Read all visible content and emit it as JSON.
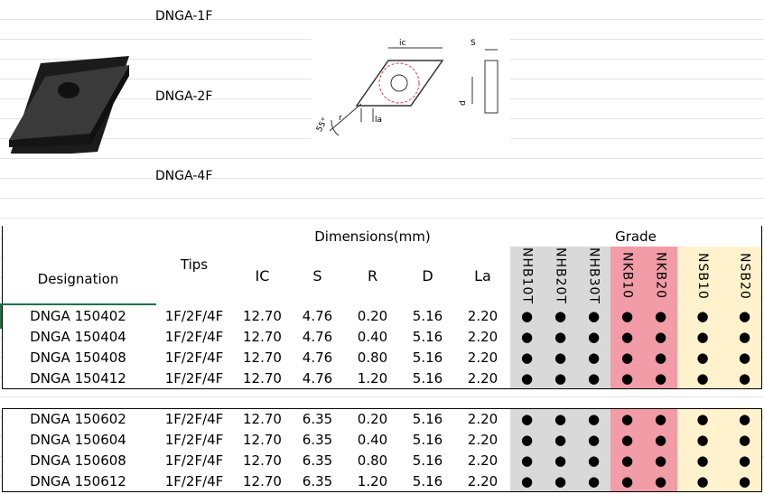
{
  "labels": [
    "DNGA-1F",
    "DNGA-2F",
    "DNGA-4F"
  ],
  "drawing": {
    "ic": "ic",
    "s": "S",
    "angle": "55°",
    "r": "r",
    "la": "la",
    "d": "d"
  },
  "table": {
    "headers": {
      "designation": "Designation",
      "tips": "Tips",
      "dimensions": "Dimensions(mm)",
      "grade": "Grade",
      "dims": [
        "IC",
        "S",
        "R",
        "D",
        "La"
      ],
      "grades": [
        "NHB10T",
        "NHB20T",
        "NHB30T",
        "NKB10",
        "NKB20",
        "NSB10",
        "NSB20"
      ]
    },
    "rows": [
      [
        "DNGA 150402",
        "1F/2F/4F",
        "12.70",
        "4.76",
        "0.20",
        "5.16",
        "2.20",
        "●",
        "●",
        "●",
        "●",
        "●",
        "●",
        "●"
      ],
      [
        "DNGA 150404",
        "1F/2F/4F",
        "12.70",
        "4.76",
        "0.40",
        "5.16",
        "2.20",
        "●",
        "●",
        "●",
        "●",
        "●",
        "●",
        "●"
      ],
      [
        "DNGA 150408",
        "1F/2F/4F",
        "12.70",
        "4.76",
        "0.80",
        "5.16",
        "2.20",
        "●",
        "●",
        "●",
        "●",
        "●",
        "●",
        "●"
      ],
      [
        "DNGA 150412",
        "1F/2F/4F",
        "12.70",
        "4.76",
        "1.20",
        "5.16",
        "2.20",
        "●",
        "●",
        "●",
        "●",
        "●",
        "●",
        "●"
      ],
      [
        "DNGA 150602",
        "1F/2F/4F",
        "12.70",
        "6.35",
        "0.20",
        "5.16",
        "2.20",
        "●",
        "●",
        "●",
        "●",
        "●",
        "●",
        "●"
      ],
      [
        "DNGA 150604",
        "1F/2F/4F",
        "12.70",
        "6.35",
        "0.40",
        "5.16",
        "2.20",
        "●",
        "●",
        "●",
        "●",
        "●",
        "●",
        "●"
      ],
      [
        "DNGA 150608",
        "1F/2F/4F",
        "12.70",
        "6.35",
        "0.80",
        "5.16",
        "2.20",
        "●",
        "●",
        "●",
        "●",
        "●",
        "●",
        "●"
      ],
      [
        "DNGA 150612",
        "1F/2F/4F",
        "12.70",
        "6.35",
        "1.20",
        "5.16",
        "2.20",
        "●",
        "●",
        "●",
        "●",
        "●",
        "●",
        "●"
      ]
    ]
  }
}
